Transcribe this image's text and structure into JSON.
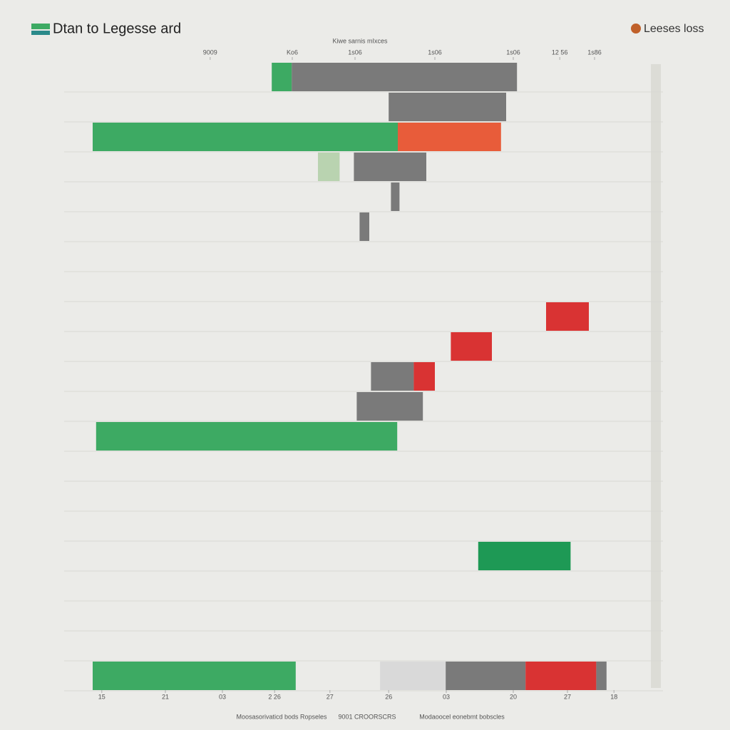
{
  "chart_data": {
    "type": "floating-bar",
    "title": "Dtan to Legesse ard",
    "subtitle": "Kiwe sarnis mIxces",
    "legend_label": "Leeses loss",
    "xlim": [
      0,
      100
    ],
    "xticks": [
      {
        "value": 1.6,
        "label": "15"
      },
      {
        "value": 12.75,
        "label": "21"
      },
      {
        "value": 22.75,
        "label": "03"
      },
      {
        "value": 31.9,
        "label": "2 26"
      },
      {
        "value": 41.6,
        "label": "27"
      },
      {
        "value": 51.9,
        "label": "26"
      },
      {
        "value": 62,
        "label": "03"
      },
      {
        "value": 73.75,
        "label": "20"
      },
      {
        "value": 83.25,
        "label": "27"
      },
      {
        "value": 91.4,
        "label": "18"
      }
    ],
    "x2ticks": [
      {
        "value": 20.6,
        "label": "9009"
      },
      {
        "value": 35,
        "label": "Ko6"
      },
      {
        "value": 46,
        "label": "1s06"
      },
      {
        "value": 60,
        "label": "1s06"
      },
      {
        "value": 73.75,
        "label": "1s06"
      },
      {
        "value": 81.9,
        "label": "12 56"
      },
      {
        "value": 88,
        "label": "1s86"
      }
    ],
    "rows": [
      {
        "segments": [
          {
            "start": 31.4,
            "end": 34.9,
            "color": "#3daa63"
          },
          {
            "start": 34.9,
            "end": 74.4,
            "color": "#7a7a7a"
          }
        ]
      },
      {
        "segments": [
          {
            "start": 51.9,
            "end": 72.5,
            "color": "#7a7a7a"
          }
        ]
      },
      {
        "segments": [
          {
            "start": 0,
            "end": 53.5,
            "color": "#3daa63"
          },
          {
            "start": 53.5,
            "end": 71.6,
            "color": "#e85c3a"
          }
        ]
      },
      {
        "segments": [
          {
            "start": 39.5,
            "end": 43.3,
            "color": "#b9d3b0"
          },
          {
            "start": 45.8,
            "end": 58.5,
            "color": "#7a7a7a"
          }
        ]
      },
      {
        "segments": [
          {
            "start": 52.3,
            "end": 53.8,
            "color": "#7a7a7a"
          }
        ]
      },
      {
        "segments": [
          {
            "start": 46.8,
            "end": 48.5,
            "color": "#7a7a7a"
          }
        ]
      },
      {
        "segments": []
      },
      {
        "segments": []
      },
      {
        "segments": [
          {
            "start": 79.5,
            "end": 87,
            "color": "#d93333"
          }
        ]
      },
      {
        "segments": [
          {
            "start": 62.8,
            "end": 70,
            "color": "#d93333"
          }
        ]
      },
      {
        "segments": [
          {
            "start": 48.8,
            "end": 56.3,
            "color": "#7a7a7a"
          },
          {
            "start": 56.3,
            "end": 60,
            "color": "#d93333"
          }
        ]
      },
      {
        "segments": [
          {
            "start": 46.3,
            "end": 57.9,
            "color": "#7a7a7a"
          }
        ]
      },
      {
        "segments": [
          {
            "start": 0.6,
            "end": 53.4,
            "color": "#3daa63"
          }
        ]
      },
      {
        "segments": []
      },
      {
        "segments": []
      },
      {
        "segments": []
      },
      {
        "segments": [
          {
            "start": 67.6,
            "end": 83.8,
            "color": "#1e9955"
          }
        ]
      },
      {
        "segments": []
      },
      {
        "segments": []
      },
      {
        "segments": []
      },
      {
        "segments": [
          {
            "start": 0,
            "end": 35.6,
            "color": "#3daa63"
          },
          {
            "start": 50.4,
            "end": 61.9,
            "color": "#d9d9d9"
          },
          {
            "start": 61.9,
            "end": 75.9,
            "color": "#7a7a7a"
          },
          {
            "start": 75.9,
            "end": 88.3,
            "color": "#d93333"
          },
          {
            "start": 88.3,
            "end": 90.1,
            "color": "#7a7a7a"
          }
        ]
      }
    ],
    "footer_labels": [
      "Moosasorivaticd bods Ropseles",
      "9001 CROORSCRS",
      "Modaoocel eonebmt bobscles"
    ]
  }
}
